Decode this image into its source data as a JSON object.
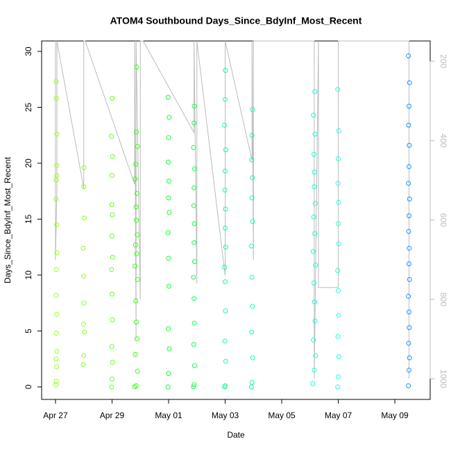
{
  "chart_data": {
    "type": "scatter",
    "title": "ATOM4 Southbound Days_Since_BdyInf_Most_Recent",
    "xlabel": "Date",
    "ylabel": "Days_Since_BdyInf_Most_Recent",
    "xlim": [
      -0.49,
      13.25
    ],
    "xticks": [
      {
        "value": 0,
        "label": "Apr 27"
      },
      {
        "value": 2,
        "label": "Apr 29"
      },
      {
        "value": 4,
        "label": "May 01"
      },
      {
        "value": 6,
        "label": "May 03"
      },
      {
        "value": 8,
        "label": "May 05"
      },
      {
        "value": 10,
        "label": "May 07"
      },
      {
        "value": 12,
        "label": "May 09"
      }
    ],
    "ylim": [
      -1.12,
      30.93
    ],
    "yticks": [
      0,
      5,
      10,
      15,
      20,
      25,
      30
    ],
    "y2lim": [
      1052,
      149
    ],
    "y2ticks": [
      200,
      400,
      600,
      800,
      1000
    ],
    "groups": [
      {
        "color": "#99ff22",
        "x": [
          0.02,
          0.03,
          0.04,
          0.02,
          0.05,
          0.03,
          0.04,
          0.02,
          0.03,
          0.05,
          0.04,
          0.02,
          0.03,
          0.04,
          0.05,
          0.03,
          0.02,
          0.04
        ],
        "y": [
          0.2,
          0.5,
          1.8,
          2.5,
          3.2,
          4.8,
          6.5,
          8.2,
          10.5,
          12.0,
          14.5,
          16.8,
          18.5,
          19.8,
          22.6,
          25.8,
          27.3,
          18.9
        ]
      },
      {
        "color": "#8cff22",
        "x": [
          0.98,
          1.0,
          1.02,
          0.99,
          1.01,
          1.0,
          0.98,
          1.02,
          1.0,
          1.01
        ],
        "y": [
          2.0,
          2.8,
          4.9,
          5.6,
          7.5,
          9.9,
          12.4,
          15.1,
          17.9,
          19.6
        ]
      },
      {
        "color": "#66ff22",
        "x": [
          1.98,
          2.0,
          2.02,
          1.99,
          2.01,
          2.0,
          1.98,
          2.02,
          2.0,
          2.01,
          1.99,
          2.0,
          2.02,
          1.98,
          2.01
        ],
        "y": [
          0.0,
          0.7,
          2.2,
          3.6,
          6.0,
          8.3,
          10.5,
          11.6,
          13.5,
          15.4,
          16.3,
          18.9,
          20.6,
          22.4,
          25.8
        ]
      },
      {
        "color": "#33ff11",
        "x": [
          2.8,
          2.85,
          2.9,
          2.82,
          2.88,
          2.86,
          2.84,
          2.9,
          2.81,
          2.87,
          2.83,
          2.89,
          2.86,
          2.85,
          2.88,
          2.82,
          2.84,
          2.9,
          2.86,
          2.87
        ],
        "y": [
          0.0,
          0.1,
          1.4,
          2.9,
          4.3,
          5.8,
          7.7,
          9.6,
          10.8,
          11.9,
          12.7,
          13.6,
          14.9,
          16.1,
          17.3,
          18.6,
          19.9,
          21.5,
          22.8,
          28.6
        ]
      },
      {
        "color": "#11ff33",
        "x": [
          3.98,
          4.0,
          4.02,
          3.99,
          4.01,
          4.0,
          3.98,
          4.02,
          4.0,
          4.01,
          3.99,
          4.0,
          4.02,
          3.98
        ],
        "y": [
          0.0,
          1.2,
          3.4,
          5.2,
          9.0,
          11.5,
          13.8,
          15.6,
          16.9,
          18.4,
          20.1,
          22.3,
          24.1,
          25.9
        ]
      },
      {
        "color": "#11ff55",
        "x": [
          4.88,
          4.9,
          4.92,
          4.89,
          4.91,
          4.9,
          4.88,
          4.92,
          4.9,
          4.91,
          4.89,
          4.9,
          4.92,
          4.88,
          4.9,
          4.91
        ],
        "y": [
          0.0,
          0.2,
          1.9,
          3.8,
          5.7,
          7.9,
          9.8,
          11.2,
          12.9,
          14.6,
          16.2,
          17.8,
          19.5,
          21.4,
          23.6,
          25.1
        ]
      },
      {
        "color": "#11ff99",
        "x": [
          5.98,
          6.0,
          6.02,
          5.99,
          6.01,
          6.0,
          5.98,
          6.02,
          6.0,
          6.01,
          5.99,
          6.0,
          6.02,
          5.98,
          6.0,
          6.01
        ],
        "y": [
          0.0,
          0.1,
          2.3,
          4.1,
          6.8,
          9.4,
          10.7,
          12.5,
          14.2,
          15.9,
          17.6,
          19.3,
          21.2,
          23.4,
          25.7,
          28.3
        ]
      },
      {
        "color": "#11ffaa",
        "x": [
          6.93,
          6.95,
          6.97,
          6.94,
          6.96,
          6.95,
          6.93,
          6.97,
          6.95,
          6.96,
          6.94,
          6.95,
          6.97
        ],
        "y": [
          0.0,
          0.4,
          2.6,
          4.9,
          7.2,
          9.8,
          12.6,
          14.8,
          16.9,
          18.7,
          20.3,
          22.5,
          24.8
        ]
      },
      {
        "color": "#11ffdd",
        "x": [
          9.1,
          9.15,
          9.2,
          9.12,
          9.18,
          9.16,
          9.14,
          9.2,
          9.11,
          9.17,
          9.13,
          9.19,
          9.15,
          9.16,
          9.14,
          9.18,
          9.12,
          9.17
        ],
        "y": [
          0.3,
          1.5,
          2.8,
          4.2,
          5.9,
          7.6,
          9.3,
          10.9,
          12.1,
          13.7,
          15.2,
          16.4,
          17.9,
          19.2,
          20.8,
          22.6,
          24.3,
          26.4
        ]
      },
      {
        "color": "#22ffdd",
        "x": [
          9.98,
          10.0,
          10.02,
          9.99,
          10.01,
          10.0,
          9.98,
          10.02,
          10.0,
          10.01,
          9.99,
          10.0,
          10.02,
          9.98
        ],
        "y": [
          0.0,
          0.9,
          2.7,
          4.5,
          6.4,
          8.6,
          10.4,
          12.8,
          14.6,
          16.5,
          18.2,
          20.4,
          22.9,
          26.6
        ]
      },
      {
        "color": "#1e90ff",
        "x": [
          12.48,
          12.5,
          12.52,
          12.49,
          12.51,
          12.5,
          12.48,
          12.52,
          12.5,
          12.51,
          12.49,
          12.5,
          12.52,
          12.48,
          12.5,
          12.51,
          12.49,
          12.5,
          12.52,
          12.48
        ],
        "y": [
          0.1,
          1.5,
          2.6,
          3.9,
          5.3,
          6.7,
          8.1,
          9.6,
          11.0,
          12.4,
          13.9,
          15.3,
          16.8,
          18.2,
          19.7,
          21.6,
          23.4,
          25.1,
          27.2,
          29.6
        ]
      }
    ],
    "depth_line": {
      "color": "#bbbbbb",
      "x": [
        0.0,
        0.0,
        0.05,
        0.05,
        1.0,
        1.0,
        1.05,
        2.8,
        2.8,
        2.85,
        2.85,
        3.0,
        3.0,
        3.1,
        4.9,
        4.9,
        5.0,
        5.0,
        6.0,
        6.0,
        6.95,
        6.95,
        7.0,
        7.0,
        9.15,
        9.15,
        9.3,
        9.3,
        10.0,
        10.0,
        12.5,
        12.5
      ],
      "y2": [
        149,
        700,
        520,
        149,
        520,
        149,
        149,
        510,
        149,
        900,
        149,
        800,
        149,
        149,
        380,
        149,
        760,
        149,
        740,
        149,
        450,
        149,
        700,
        149,
        149,
        1000,
        149,
        770,
        770,
        149,
        149,
        1000
      ]
    }
  }
}
